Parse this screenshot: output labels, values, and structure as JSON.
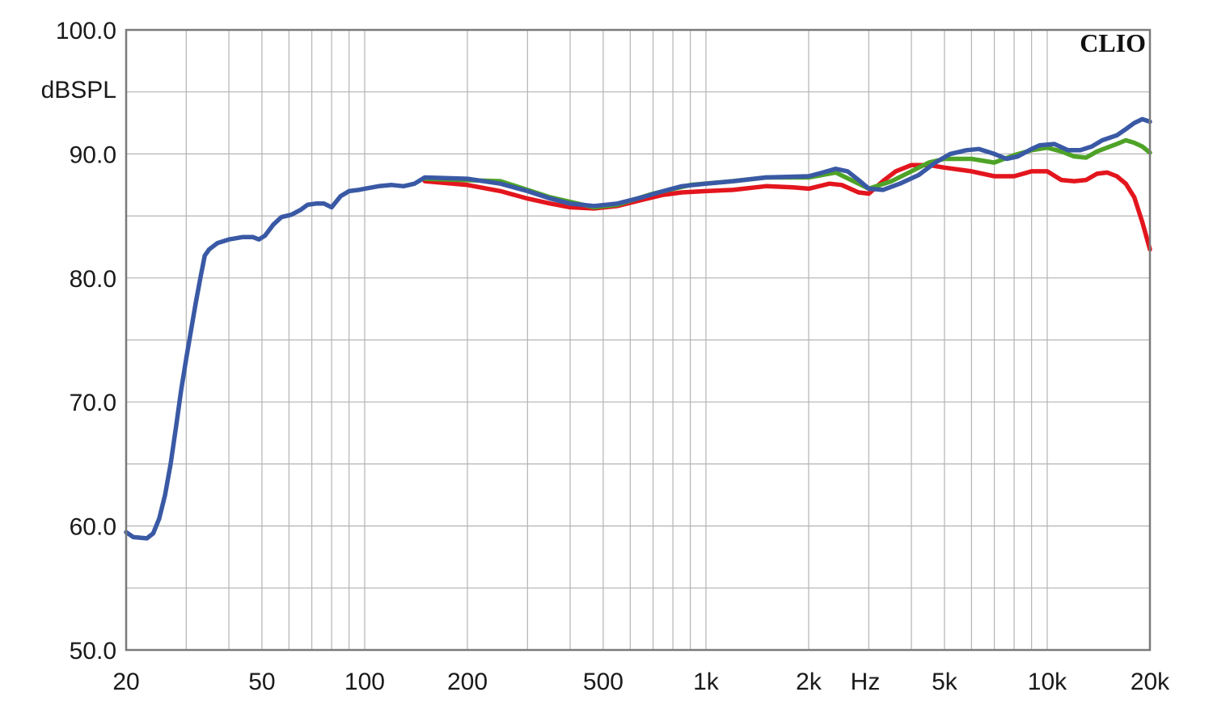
{
  "chart_data": {
    "type": "line",
    "title": "",
    "brand_label": "CLIO",
    "ylabel": "dBSPL",
    "xlabel": "Hz",
    "x_scale": "log",
    "xlim": [
      20,
      20000
    ],
    "ylim": [
      50,
      100
    ],
    "grid": true,
    "y_ticks": [
      "50.0",
      "60.0",
      "70.0",
      "80.0",
      "90.0",
      "100.0"
    ],
    "x_ticks": [
      "20",
      "50",
      "100",
      "200",
      "500",
      "1k",
      "2k",
      "5k",
      "10k",
      "20k"
    ],
    "series": [
      {
        "color": "#e3151d",
        "points": [
          [
            150,
            87.8
          ],
          [
            200,
            87.5
          ],
          [
            250,
            87
          ],
          [
            300,
            86.4
          ],
          [
            350,
            86
          ],
          [
            400,
            85.7
          ],
          [
            470,
            85.6
          ],
          [
            550,
            85.8
          ],
          [
            650,
            86.3
          ],
          [
            750,
            86.7
          ],
          [
            850,
            86.9
          ],
          [
            1000,
            87
          ],
          [
            1200,
            87.1
          ],
          [
            1500,
            87.4
          ],
          [
            1800,
            87.3
          ],
          [
            2000,
            87.2
          ],
          [
            2300,
            87.6
          ],
          [
            2500,
            87.5
          ],
          [
            2800,
            86.9
          ],
          [
            3000,
            86.8
          ],
          [
            3300,
            87.8
          ],
          [
            3600,
            88.6
          ],
          [
            4000,
            89.1
          ],
          [
            4500,
            89.1
          ],
          [
            5000,
            88.9
          ],
          [
            6000,
            88.6
          ],
          [
            7000,
            88.2
          ],
          [
            8000,
            88.2
          ],
          [
            9000,
            88.6
          ],
          [
            10000,
            88.6
          ],
          [
            11000,
            87.9
          ],
          [
            12000,
            87.8
          ],
          [
            13000,
            87.9
          ],
          [
            14000,
            88.4
          ],
          [
            15000,
            88.5
          ],
          [
            16000,
            88.2
          ],
          [
            17000,
            87.6
          ],
          [
            18000,
            86.5
          ],
          [
            19000,
            84.5
          ],
          [
            20000,
            82.3
          ]
        ]
      },
      {
        "color": "#4ea327",
        "points": [
          [
            150,
            88
          ],
          [
            250,
            87.8
          ],
          [
            350,
            86.5
          ],
          [
            470,
            85.7
          ],
          [
            550,
            85.9
          ],
          [
            700,
            86.8
          ],
          [
            900,
            87.5
          ],
          [
            1200,
            87.8
          ],
          [
            1500,
            88.1
          ],
          [
            2000,
            88.1
          ],
          [
            2400,
            88.5
          ],
          [
            2800,
            87.6
          ],
          [
            3000,
            87.2
          ],
          [
            3500,
            87.8
          ],
          [
            4000,
            88.6
          ],
          [
            4500,
            89.3
          ],
          [
            5000,
            89.6
          ],
          [
            6000,
            89.6
          ],
          [
            7000,
            89.3
          ],
          [
            8000,
            89.9
          ],
          [
            9000,
            90.3
          ],
          [
            10000,
            90.5
          ],
          [
            11000,
            90.2
          ],
          [
            12000,
            89.8
          ],
          [
            13000,
            89.7
          ],
          [
            14000,
            90.2
          ],
          [
            16000,
            90.8
          ],
          [
            17000,
            91.1
          ],
          [
            18000,
            90.9
          ],
          [
            19000,
            90.6
          ],
          [
            20000,
            90.1
          ]
        ]
      },
      {
        "color": "#3a59a5",
        "points": [
          [
            20,
            59.5
          ],
          [
            21,
            59.1
          ],
          [
            23,
            59
          ],
          [
            24,
            59.4
          ],
          [
            25,
            60.6
          ],
          [
            26,
            62.5
          ],
          [
            27,
            65
          ],
          [
            28,
            68
          ],
          [
            29,
            71
          ],
          [
            30,
            73.5
          ],
          [
            31,
            75.8
          ],
          [
            32,
            78
          ],
          [
            33,
            80
          ],
          [
            34,
            81.8
          ],
          [
            35,
            82.3
          ],
          [
            37,
            82.8
          ],
          [
            40,
            83.1
          ],
          [
            44,
            83.3
          ],
          [
            47,
            83.3
          ],
          [
            49,
            83.1
          ],
          [
            51,
            83.4
          ],
          [
            54,
            84.3
          ],
          [
            57,
            84.9
          ],
          [
            61,
            85.1
          ],
          [
            65,
            85.5
          ],
          [
            68,
            85.9
          ],
          [
            72,
            86
          ],
          [
            76,
            86
          ],
          [
            80,
            85.7
          ],
          [
            85,
            86.6
          ],
          [
            90,
            87
          ],
          [
            96,
            87.1
          ],
          [
            100,
            87.2
          ],
          [
            110,
            87.4
          ],
          [
            120,
            87.5
          ],
          [
            130,
            87.4
          ],
          [
            140,
            87.6
          ],
          [
            150,
            88.1
          ],
          [
            200,
            88
          ],
          [
            250,
            87.6
          ],
          [
            300,
            87
          ],
          [
            350,
            86.4
          ],
          [
            400,
            86
          ],
          [
            470,
            85.8
          ],
          [
            550,
            86
          ],
          [
            650,
            86.5
          ],
          [
            750,
            87
          ],
          [
            850,
            87.4
          ],
          [
            1000,
            87.6
          ],
          [
            1200,
            87.8
          ],
          [
            1500,
            88.1
          ],
          [
            2000,
            88.2
          ],
          [
            2200,
            88.5
          ],
          [
            2400,
            88.8
          ],
          [
            2600,
            88.6
          ],
          [
            2800,
            87.9
          ],
          [
            3000,
            87.2
          ],
          [
            3300,
            87.1
          ],
          [
            3700,
            87.6
          ],
          [
            4200,
            88.3
          ],
          [
            4700,
            89.3
          ],
          [
            5200,
            90
          ],
          [
            5800,
            90.3
          ],
          [
            6300,
            90.4
          ],
          [
            7000,
            90
          ],
          [
            7600,
            89.6
          ],
          [
            8200,
            89.8
          ],
          [
            9000,
            90.4
          ],
          [
            9500,
            90.7
          ],
          [
            10500,
            90.8
          ],
          [
            11500,
            90.3
          ],
          [
            12500,
            90.3
          ],
          [
            13500,
            90.6
          ],
          [
            14500,
            91.1
          ],
          [
            16000,
            91.5
          ],
          [
            17000,
            92
          ],
          [
            18000,
            92.5
          ],
          [
            19000,
            92.8
          ],
          [
            20000,
            92.6
          ]
        ]
      }
    ]
  }
}
